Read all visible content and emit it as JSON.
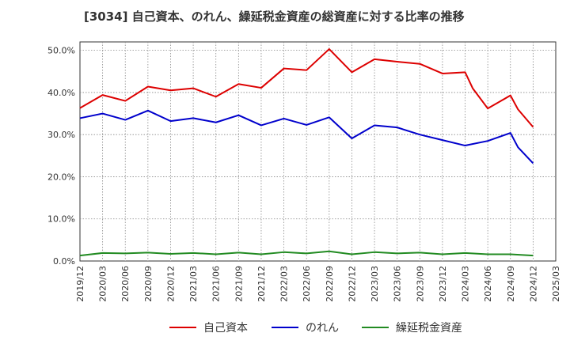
{
  "chart_data": {
    "type": "line",
    "title": "[3034]  自己資本、のれん、繰延税金資産の総資産に対する比率の推移",
    "xlabel": "",
    "ylabel": "",
    "ylim": [
      0,
      52
    ],
    "yticks": [
      "0.0%",
      "10.0%",
      "20.0%",
      "30.0%",
      "40.0%",
      "50.0%"
    ],
    "ytick_values": [
      0,
      10,
      20,
      30,
      40,
      50
    ],
    "grid": true,
    "legend_position": "bottom",
    "x_tick_labels": [
      "2019/12",
      "2020/03",
      "2020/06",
      "2020/09",
      "2020/12",
      "2021/03",
      "2021/06",
      "2021/09",
      "2021/12",
      "2022/03",
      "2022/06",
      "2022/09",
      "2022/12",
      "2023/03",
      "2023/06",
      "2023/09",
      "2023/12",
      "2024/03",
      "2024/06",
      "2024/09",
      "2024/12",
      "2025/03"
    ],
    "series": [
      {
        "name": "自己資本",
        "color": "#dd0000",
        "x": [
          "2019/12",
          "2020/03",
          "2020/06",
          "2020/09",
          "2020/12",
          "2021/03",
          "2021/06",
          "2021/09",
          "2021/12",
          "2022/03",
          "2022/06",
          "2022/09",
          "2022/12",
          "2023/03",
          "2023/06",
          "2023/09",
          "2023/12",
          "2024/03",
          "2024/04",
          "2024/06",
          "2024/09",
          "2024/10",
          "2024/12"
        ],
        "values": [
          36.3,
          39.4,
          38.0,
          41.4,
          40.5,
          41.0,
          39.0,
          42.0,
          41.1,
          45.7,
          45.3,
          50.3,
          44.8,
          47.9,
          47.3,
          46.8,
          44.5,
          44.8,
          41.0,
          36.2,
          39.3,
          36.0,
          31.8
        ]
      },
      {
        "name": "のれん",
        "color": "#0000cc",
        "x": [
          "2019/12",
          "2020/03",
          "2020/06",
          "2020/09",
          "2020/12",
          "2021/03",
          "2021/06",
          "2021/09",
          "2021/12",
          "2022/03",
          "2022/06",
          "2022/09",
          "2022/12",
          "2023/03",
          "2023/06",
          "2023/09",
          "2023/12",
          "2024/03",
          "2024/06",
          "2024/09",
          "2024/10",
          "2024/12"
        ],
        "values": [
          33.9,
          35.0,
          33.5,
          35.7,
          33.2,
          33.9,
          32.9,
          34.6,
          32.2,
          33.8,
          32.3,
          34.1,
          29.1,
          32.2,
          31.7,
          30.0,
          28.7,
          27.4,
          28.5,
          30.4,
          27.0,
          23.2
        ]
      },
      {
        "name": "繰延税金資産",
        "color": "#228b22",
        "x": [
          "2019/12",
          "2020/03",
          "2020/06",
          "2020/09",
          "2020/12",
          "2021/03",
          "2021/06",
          "2021/09",
          "2021/12",
          "2022/03",
          "2022/06",
          "2022/09",
          "2022/12",
          "2023/03",
          "2023/06",
          "2023/09",
          "2023/12",
          "2024/03",
          "2024/06",
          "2024/09",
          "2024/12"
        ],
        "values": [
          1.3,
          1.9,
          1.8,
          2.0,
          1.7,
          1.9,
          1.6,
          2.0,
          1.6,
          2.1,
          1.8,
          2.3,
          1.6,
          2.1,
          1.8,
          2.0,
          1.6,
          1.9,
          1.6,
          1.6,
          1.3
        ]
      }
    ]
  }
}
